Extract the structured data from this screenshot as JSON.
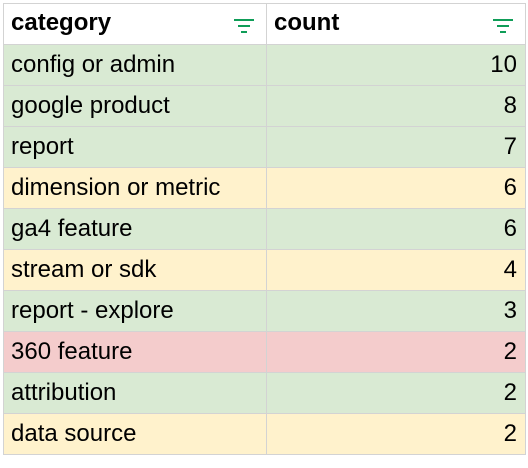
{
  "table": {
    "headers": [
      {
        "label": "category",
        "filter_icon": "filter-icon"
      },
      {
        "label": "count",
        "filter_icon": "filter-icon"
      }
    ],
    "rows": [
      {
        "category": "config or admin",
        "count": "10",
        "color": "#d9ead3"
      },
      {
        "category": "google product",
        "count": "8",
        "color": "#d9ead3"
      },
      {
        "category": "report",
        "count": "7",
        "color": "#d9ead3"
      },
      {
        "category": "dimension or metric",
        "count": "6",
        "color": "#fff2cc"
      },
      {
        "category": "ga4 feature",
        "count": "6",
        "color": "#d9ead3"
      },
      {
        "category": "stream or sdk",
        "count": "4",
        "color": "#fff2cc"
      },
      {
        "category": "report - explore",
        "count": "3",
        "color": "#d9ead3"
      },
      {
        "category": "360 feature",
        "count": "2",
        "color": "#f4cccc"
      },
      {
        "category": "attribution",
        "count": "2",
        "color": "#d9ead3"
      },
      {
        "category": "data source",
        "count": "2",
        "color": "#fff2cc"
      }
    ]
  },
  "colors": {
    "green": "#d9ead3",
    "yellow": "#fff2cc",
    "red": "#f4cccc",
    "filter_icon": "#0f9d58",
    "grid": "#d3d3d3"
  }
}
